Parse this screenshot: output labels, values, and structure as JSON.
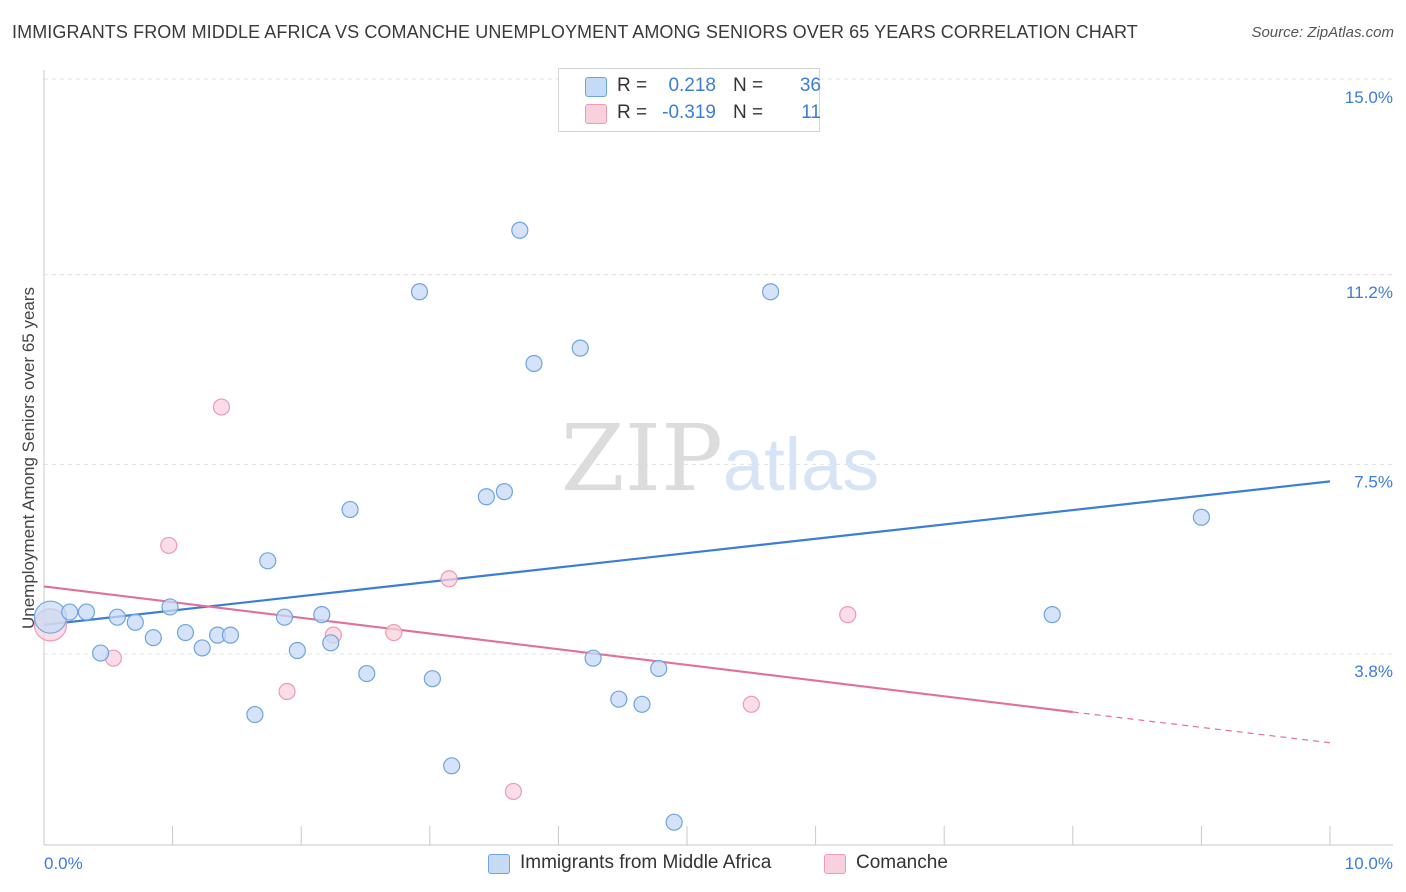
{
  "chart_data": {
    "type": "scatter",
    "title": "IMMIGRANTS FROM MIDDLE AFRICA VS COMANCHE UNEMPLOYMENT AMONG SENIORS OVER 65 YEARS CORRELATION CHART",
    "source": "Source: ZipAtlas.com",
    "watermark": "ZIPatlas",
    "ylabel": "Unemployment Among Seniors over 65 years",
    "xlabel": "",
    "xlim": [
      0,
      10
    ],
    "ylim": [
      0.5,
      15.5
    ],
    "x_tick_labels": [
      "0.0%",
      "10.0%"
    ],
    "y_ticks": [
      {
        "value": 15.0,
        "label": "15.0%"
      },
      {
        "value": 11.2,
        "label": "11.2%"
      },
      {
        "value": 7.5,
        "label": "7.5%"
      },
      {
        "value": 3.8,
        "label": "3.8%"
      }
    ],
    "grid": true,
    "legend": {
      "placement": "top-center",
      "entries": [
        {
          "series": "Immigrants from Middle Africa",
          "r_label": "R =",
          "r_value": "0.218",
          "n_label": "N =",
          "n_value": "36"
        },
        {
          "series": "Comanche",
          "r_label": "R =",
          "r_value": "-0.319",
          "n_label": "N =",
          "n_value": "11"
        }
      ]
    },
    "series": [
      {
        "name": "Immigrants from Middle Africa",
        "color": "#6fa4e0",
        "fill": "#c5daf5",
        "trend": {
          "x": [
            0,
            10
          ],
          "y": [
            4.7,
            7.5
          ],
          "color": "#3b7dd8"
        },
        "points": [
          {
            "x": 0.05,
            "y": 4.85,
            "big": true
          },
          {
            "x": 0.2,
            "y": 4.95
          },
          {
            "x": 0.33,
            "y": 4.95
          },
          {
            "x": 0.44,
            "y": 4.15
          },
          {
            "x": 0.57,
            "y": 4.85
          },
          {
            "x": 0.71,
            "y": 4.75
          },
          {
            "x": 0.85,
            "y": 4.45
          },
          {
            "x": 0.98,
            "y": 5.05
          },
          {
            "x": 1.1,
            "y": 4.55
          },
          {
            "x": 1.23,
            "y": 4.25
          },
          {
            "x": 1.35,
            "y": 4.5
          },
          {
            "x": 1.45,
            "y": 4.5
          },
          {
            "x": 1.64,
            "y": 2.95
          },
          {
            "x": 1.74,
            "y": 5.95
          },
          {
            "x": 1.87,
            "y": 4.85
          },
          {
            "x": 1.97,
            "y": 4.2
          },
          {
            "x": 2.16,
            "y": 4.9
          },
          {
            "x": 2.23,
            "y": 4.35
          },
          {
            "x": 2.38,
            "y": 6.95
          },
          {
            "x": 2.51,
            "y": 3.75
          },
          {
            "x": 2.92,
            "y": 11.2
          },
          {
            "x": 3.02,
            "y": 3.65
          },
          {
            "x": 3.17,
            "y": 1.95
          },
          {
            "x": 3.44,
            "y": 7.2
          },
          {
            "x": 3.58,
            "y": 7.3
          },
          {
            "x": 3.7,
            "y": 12.4
          },
          {
            "x": 3.81,
            "y": 9.8
          },
          {
            "x": 4.17,
            "y": 10.1
          },
          {
            "x": 4.27,
            "y": 4.05
          },
          {
            "x": 4.47,
            "y": 3.25
          },
          {
            "x": 4.65,
            "y": 3.15
          },
          {
            "x": 4.78,
            "y": 3.85
          },
          {
            "x": 4.9,
            "y": 0.85
          },
          {
            "x": 5.65,
            "y": 11.2
          },
          {
            "x": 7.84,
            "y": 4.9
          },
          {
            "x": 9.0,
            "y": 6.8
          }
        ]
      },
      {
        "name": "Comanche",
        "color": "#ee9ab4",
        "fill": "#f9d1dd",
        "trend": {
          "x": [
            0,
            8.0
          ],
          "y": [
            5.45,
            3.0
          ],
          "dashed_to": [
            10,
            2.4
          ],
          "color": "#e0719a"
        },
        "points": [
          {
            "x": 0.05,
            "y": 4.7,
            "big": true
          },
          {
            "x": 0.54,
            "y": 4.05
          },
          {
            "x": 0.97,
            "y": 6.25
          },
          {
            "x": 1.38,
            "y": 8.95
          },
          {
            "x": 1.89,
            "y": 3.4
          },
          {
            "x": 2.25,
            "y": 4.5
          },
          {
            "x": 2.72,
            "y": 4.55
          },
          {
            "x": 3.15,
            "y": 5.6
          },
          {
            "x": 3.65,
            "y": 1.45
          },
          {
            "x": 5.5,
            "y": 3.15
          },
          {
            "x": 6.25,
            "y": 4.9
          }
        ]
      }
    ]
  }
}
